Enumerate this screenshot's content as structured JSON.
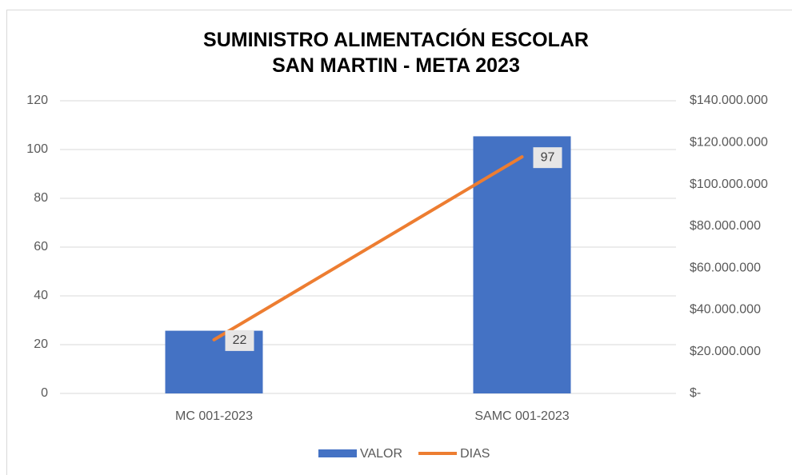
{
  "chart_data": {
    "type": "bar",
    "title": "SUMINISTRO ALIMENTACIÓN ESCOLAR SAN MARTIN - META 2023",
    "categories": [
      "MC 001-2023",
      "SAMC 001-2023"
    ],
    "series": [
      {
        "name": "VALOR",
        "type": "bar",
        "color": "#4472c4",
        "axis": "y2",
        "values": [
          30000000,
          123000000
        ]
      },
      {
        "name": "DIAS",
        "type": "line",
        "color": "#ed7d31",
        "values": [
          22,
          97
        ]
      }
    ],
    "ylim": [
      0,
      120
    ],
    "yticks": [
      0,
      20,
      40,
      60,
      80,
      100,
      120
    ],
    "y2lim": [
      0,
      140000000
    ],
    "y2ticks": [
      {
        "value": 0,
        "label": "$-"
      },
      {
        "value": 20000000,
        "label": "$20.000.000"
      },
      {
        "value": 40000000,
        "label": "$40.000.000"
      },
      {
        "value": 60000000,
        "label": "$60.000.000"
      },
      {
        "value": 80000000,
        "label": "$80.000.000"
      },
      {
        "value": 100000000,
        "label": "$100.000.000"
      },
      {
        "value": 120000000,
        "label": "$120.000.000"
      },
      {
        "value": 140000000,
        "label": "$140.000.000"
      }
    ],
    "grid": true,
    "legend": "bottom"
  }
}
